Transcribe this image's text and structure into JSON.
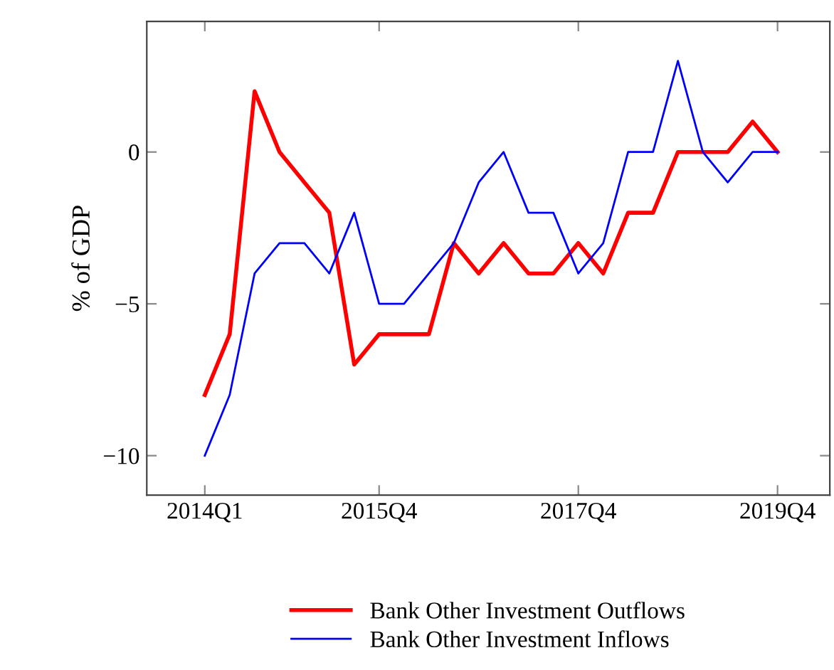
{
  "chart_data": {
    "type": "line",
    "ylabel": "% of GDP",
    "categories": [
      "2014Q1",
      null,
      null,
      null,
      null,
      null,
      null,
      "2015Q4",
      null,
      null,
      null,
      null,
      null,
      null,
      null,
      "2017Q4",
      null,
      null,
      null,
      null,
      null,
      null,
      null,
      "2019Q4"
    ],
    "series": [
      {
        "name": "Bank Other Investment Outflows",
        "color": "#ff0000",
        "values": [
          -8,
          -6,
          2,
          0,
          -1,
          -2,
          -7,
          -6,
          -6,
          -6,
          -3,
          -4,
          -3,
          -4,
          -4,
          -3,
          -4,
          -2,
          -2,
          0,
          0,
          0,
          1,
          0
        ]
      },
      {
        "name": "Bank Other Investment Inflows",
        "color": "#0000ff",
        "values": [
          -10,
          -8,
          -4,
          -3,
          -3,
          -4,
          -2,
          -5,
          -5,
          -4,
          -3,
          -1,
          0,
          -2,
          -2,
          -4,
          -3,
          0,
          0,
          3,
          0,
          -1,
          0,
          0
        ]
      }
    ],
    "ylim": [
      -11.3,
      4.3
    ],
    "yticks": [
      {
        "value": -10,
        "label": "−10"
      },
      {
        "value": -5,
        "label": "−5"
      },
      0
    ],
    "grid": false,
    "legend": "bottom",
    "marker": "none",
    "line_style": "solid"
  }
}
